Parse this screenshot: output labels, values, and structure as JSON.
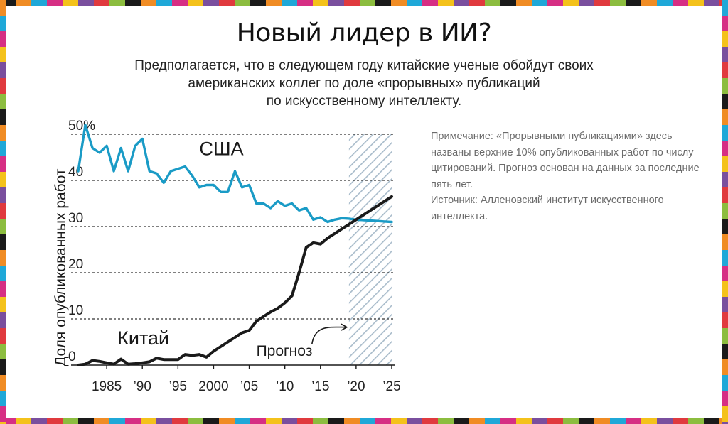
{
  "header": {
    "title": "Новый лидер в ИИ?",
    "subtitle_lines": [
      "Предполагается, что в следующем году китайские ученые обойдут своих",
      "американских коллег по доле «прорывных» публикаций",
      "по искусственному интеллекту."
    ]
  },
  "note": {
    "text": "Примечание: «Прорывными публикациями» здесь названы верхние 10% опубликованных работ по числу цитирований. Прогноз основан на данных за последние пять лет.",
    "source": "Источник: Алленовский институт искусственного интеллекта."
  },
  "palette": {
    "usa": "#1a9bc6",
    "china": "#1a1a1a",
    "grid": "#333333",
    "forecast_hatch": "#a9bccb",
    "border_colors": [
      "#e03a3e",
      "#f08c24",
      "#f4c21b",
      "#8cbd3f",
      "#1fa8d8",
      "#7a4f9e",
      "#1a1a1a",
      "#d62f84"
    ]
  },
  "chart_data": {
    "type": "line",
    "title": "",
    "xlabel": "",
    "ylabel": "Доля опубликованных работ",
    "xlim": [
      1980,
      2025.5
    ],
    "ylim": [
      0,
      50
    ],
    "y_ticks": [
      {
        "value": 0,
        "label": "0"
      },
      {
        "value": 10,
        "label": "10"
      },
      {
        "value": 20,
        "label": "20"
      },
      {
        "value": 30,
        "label": "30"
      },
      {
        "value": 40,
        "label": "40"
      },
      {
        "value": 50,
        "label": "50%"
      }
    ],
    "x_ticks": [
      {
        "value": 1985,
        "label": "1985"
      },
      {
        "value": 1990,
        "label": "’90"
      },
      {
        "value": 1995,
        "label": "’95"
      },
      {
        "value": 2000,
        "label": "2000"
      },
      {
        "value": 2005,
        "label": "’05"
      },
      {
        "value": 2010,
        "label": "’10"
      },
      {
        "value": 2015,
        "label": "’15"
      },
      {
        "value": 2020,
        "label": "’20"
      },
      {
        "value": 2025,
        "label": "’25"
      }
    ],
    "grid": "horizontal dashed",
    "forecast_region": {
      "start": 2019,
      "end": 2025,
      "label": "Прогноз"
    },
    "series": [
      {
        "name": "США",
        "x": [
          1981,
          1982,
          1983,
          1984,
          1985,
          1986,
          1987,
          1988,
          1989,
          1990,
          1991,
          1992,
          1993,
          1994,
          1995,
          1996,
          1997,
          1998,
          1999,
          2000,
          2001,
          2002,
          2003,
          2004,
          2005,
          2006,
          2007,
          2008,
          2009,
          2010,
          2011,
          2012,
          2013,
          2014,
          2015,
          2016,
          2017,
          2018,
          2019,
          2020,
          2021,
          2022,
          2023,
          2024,
          2025
        ],
        "y": [
          42,
          52,
          47,
          46,
          47.5,
          42,
          47,
          42,
          47.5,
          49,
          42,
          41.5,
          39.5,
          42,
          42.5,
          43,
          41,
          38.5,
          39,
          39,
          37.5,
          37.5,
          42,
          38.5,
          39,
          35,
          35,
          34,
          35.5,
          34.5,
          35,
          33.5,
          34,
          31.5,
          32,
          31,
          31.5,
          31.8,
          31.7,
          31.5,
          31.4,
          31.3,
          31.2,
          31.1,
          31
        ]
      },
      {
        "name": "Китай",
        "x": [
          1981,
          1982,
          1983,
          1984,
          1985,
          1986,
          1987,
          1988,
          1989,
          1990,
          1991,
          1992,
          1993,
          1994,
          1995,
          1996,
          1997,
          1998,
          1999,
          2000,
          2001,
          2002,
          2003,
          2004,
          2005,
          2006,
          2007,
          2008,
          2009,
          2010,
          2011,
          2012,
          2013,
          2014,
          2015,
          2016,
          2017,
          2018,
          2019,
          2020,
          2021,
          2022,
          2023,
          2024,
          2025
        ],
        "y": [
          0,
          0.2,
          1,
          0.8,
          0.5,
          0.2,
          1.3,
          0.2,
          0.3,
          0.5,
          0.7,
          1.5,
          1.2,
          1.2,
          1.2,
          2.3,
          2.1,
          2.3,
          1.7,
          3,
          4,
          5,
          6,
          7,
          7.5,
          9.5,
          10.5,
          11.5,
          12.3,
          13.5,
          15,
          20,
          25.5,
          26.5,
          26.2,
          27.5,
          28.5,
          29.5,
          30.5,
          31.5,
          32.5,
          33.5,
          34.5,
          35.5,
          36.5
        ]
      }
    ],
    "annotations": [
      {
        "text": "США",
        "x": 1998,
        "y": 45.5
      },
      {
        "text": "Китай",
        "x": 1986.5,
        "y": 4.5
      },
      {
        "text": "Прогноз",
        "x": 2006,
        "y": 2
      }
    ]
  }
}
